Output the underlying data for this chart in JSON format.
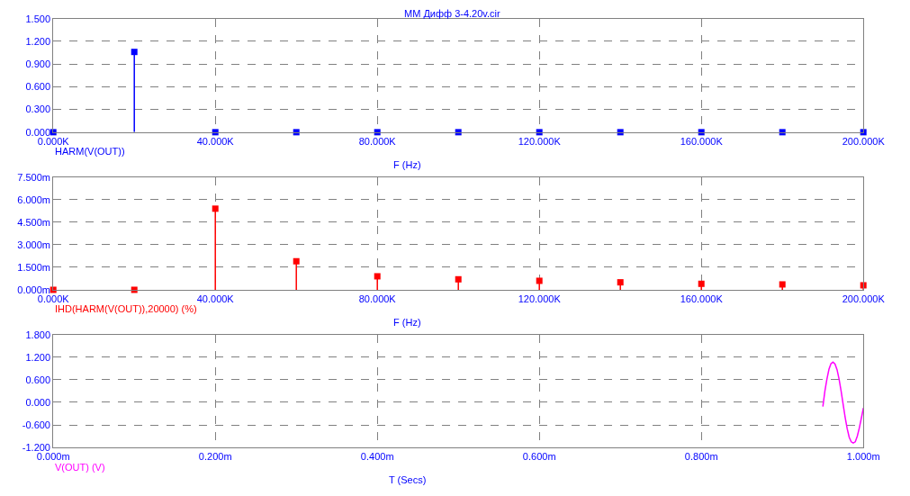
{
  "chart_data": [
    {
      "type": "lollipop",
      "title": "MM Дифф 3-4.20v.cir",
      "xlabel": "F (Hz)",
      "marker": "square",
      "grid": true,
      "legend": false,
      "x": [
        0,
        20000,
        40000,
        60000,
        80000,
        100000,
        120000,
        140000,
        160000,
        180000,
        200000
      ],
      "series": [
        {
          "name": "HARM(V(OUT))",
          "color": "#0000ff",
          "values": [
            0,
            1.06,
            0,
            0,
            0,
            0,
            0,
            0,
            0,
            0,
            0
          ]
        }
      ],
      "xlim": [
        0,
        200000
      ],
      "xticks": [
        {
          "value": 0,
          "label": "0.000K"
        },
        {
          "value": 40000,
          "label": "40.000K"
        },
        {
          "value": 80000,
          "label": "80.000K"
        },
        {
          "value": 120000,
          "label": "120.000K"
        },
        {
          "value": 160000,
          "label": "160.000K"
        },
        {
          "value": 200000,
          "label": "200.000K"
        }
      ],
      "ylim": [
        0,
        1.5
      ],
      "yticks": [
        {
          "value": 0,
          "label": "0.000"
        },
        {
          "value": 0.3,
          "label": "0.300"
        },
        {
          "value": 0.6,
          "label": "0.600"
        },
        {
          "value": 0.9,
          "label": "0.900"
        },
        {
          "value": 1.2,
          "label": "1.200"
        },
        {
          "value": 1.5,
          "label": "1.500"
        }
      ]
    },
    {
      "type": "lollipop",
      "xlabel": "F (Hz)",
      "marker": "square",
      "grid": true,
      "legend": false,
      "x": [
        0,
        20000,
        40000,
        60000,
        80000,
        100000,
        120000,
        140000,
        160000,
        180000,
        200000
      ],
      "series": [
        {
          "name": "IHD(HARM(V(OUT)),20000) (%)",
          "color": "#ff0000",
          "values": [
            0,
            0,
            5.4,
            1.9,
            0.9,
            0.7,
            0.6,
            0.5,
            0.4,
            0.36,
            0.3
          ]
        }
      ],
      "xlim": [
        0,
        200000
      ],
      "xticks": [
        {
          "value": 0,
          "label": "0.000K"
        },
        {
          "value": 40000,
          "label": "40.000K"
        },
        {
          "value": 80000,
          "label": "80.000K"
        },
        {
          "value": 120000,
          "label": "120.000K"
        },
        {
          "value": 160000,
          "label": "160.000K"
        },
        {
          "value": 200000,
          "label": "200.000K"
        }
      ],
      "ylim": [
        0,
        7.5
      ],
      "yticks": [
        {
          "value": 0,
          "label": "0.000m"
        },
        {
          "value": 1.5,
          "label": "1.500m"
        },
        {
          "value": 3,
          "label": "3.000m"
        },
        {
          "value": 4.5,
          "label": "4.500m"
        },
        {
          "value": 6,
          "label": "6.000m"
        },
        {
          "value": 7.5,
          "label": "7.500m"
        }
      ]
    },
    {
      "type": "line",
      "xlabel": "T (Secs)",
      "marker": "none",
      "grid": true,
      "legend": false,
      "x": [
        0.95,
        0.9525,
        0.955,
        0.9575,
        0.96,
        0.9625,
        0.965,
        0.9675,
        0.97,
        0.9725,
        0.975,
        0.9775,
        0.98,
        0.9825,
        0.985,
        0.9875,
        0.99,
        0.9925,
        0.995,
        0.9975,
        1.0
      ],
      "series": [
        {
          "name": "V(OUT) (V)",
          "color": "#ff00ff",
          "values": [
            -0.11,
            0.3,
            0.62,
            0.88,
            1.03,
            1.07,
            1.02,
            0.87,
            0.62,
            0.3,
            -0.05,
            -0.4,
            -0.7,
            -0.93,
            -1.05,
            -1.08,
            -1.05,
            -0.9,
            -0.68,
            -0.42,
            -0.15
          ]
        }
      ],
      "xlim": [
        0,
        1
      ],
      "xticks": [
        {
          "value": 0,
          "label": "0.000m"
        },
        {
          "value": 0.2,
          "label": "0.200m"
        },
        {
          "value": 0.4,
          "label": "0.400m"
        },
        {
          "value": 0.6,
          "label": "0.600m"
        },
        {
          "value": 0.8,
          "label": "0.800m"
        },
        {
          "value": 1,
          "label": "1.000m"
        }
      ],
      "ylim": [
        -1.2,
        1.8
      ],
      "yticks": [
        {
          "value": -1.2,
          "label": "-1.200"
        },
        {
          "value": -0.6,
          "label": "-0.600"
        },
        {
          "value": 0,
          "label": "0.000"
        },
        {
          "value": 0.6,
          "label": "0.600"
        },
        {
          "value": 1.2,
          "label": "1.200"
        },
        {
          "value": 1.8,
          "label": "1.800"
        }
      ]
    }
  ]
}
